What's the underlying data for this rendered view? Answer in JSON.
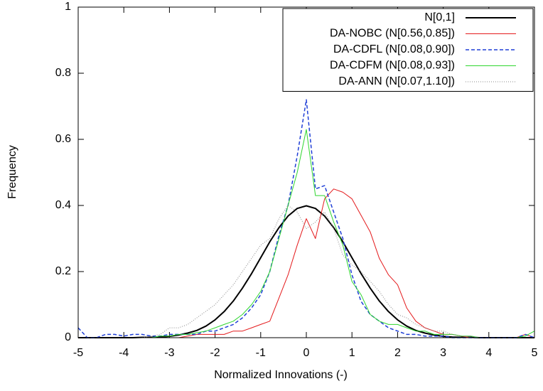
{
  "chart_data": {
    "type": "line",
    "xlabel": "Normalized Innovations (-)",
    "ylabel": "Frequency",
    "x": [
      -5,
      -4.8,
      -4.6,
      -4.4,
      -4.2,
      -4,
      -3.8,
      -3.6,
      -3.4,
      -3.2,
      -3,
      -2.8,
      -2.6,
      -2.4,
      -2.2,
      -2,
      -1.8,
      -1.6,
      -1.4,
      -1.2,
      -1,
      -0.8,
      -0.6,
      -0.4,
      -0.2,
      0,
      0.2,
      0.4,
      0.6,
      0.8,
      1,
      1.2,
      1.4,
      1.6,
      1.8,
      2,
      2.2,
      2.4,
      2.6,
      2.8,
      3,
      3.2,
      3.4,
      3.6,
      3.8,
      4,
      4.2,
      4.4,
      4.6,
      4.8,
      5
    ],
    "series": [
      {
        "name": "N[0,1]",
        "color": "#000000",
        "dash": "solid",
        "width": 2,
        "values": [
          0,
          0,
          0,
          0,
          0,
          0,
          0,
          0.001,
          0.001,
          0.002,
          0.004,
          0.008,
          0.014,
          0.022,
          0.035,
          0.054,
          0.079,
          0.111,
          0.15,
          0.194,
          0.242,
          0.29,
          0.333,
          0.368,
          0.391,
          0.399,
          0.391,
          0.368,
          0.333,
          0.29,
          0.242,
          0.194,
          0.15,
          0.111,
          0.079,
          0.054,
          0.035,
          0.022,
          0.014,
          0.008,
          0.004,
          0.002,
          0.001,
          0.001,
          0,
          0,
          0,
          0,
          0,
          0,
          0
        ]
      },
      {
        "name": "DA-NOBC (N[0.56,0.85])",
        "color": "#e41a1c",
        "dash": "solid",
        "width": 1,
        "values": [
          0,
          0,
          0,
          0,
          0,
          0,
          0,
          0,
          0,
          0,
          0,
          0,
          0.005,
          0.01,
          0.01,
          0.01,
          0.01,
          0.02,
          0.02,
          0.03,
          0.04,
          0.05,
          0.12,
          0.19,
          0.28,
          0.36,
          0.3,
          0.42,
          0.45,
          0.44,
          0.42,
          0.37,
          0.32,
          0.24,
          0.19,
          0.16,
          0.09,
          0.05,
          0.03,
          0.02,
          0.01,
          0.01,
          0.005,
          0,
          0,
          0,
          0,
          0,
          0,
          0.01,
          0
        ]
      },
      {
        "name": "DA-CDFL (N[0.08,0.90])",
        "color": "#1f3fd6",
        "dash": "dashed",
        "width": 1.5,
        "values": [
          0.03,
          0,
          0,
          0.01,
          0.01,
          0.005,
          0.01,
          0.01,
          0.005,
          0.005,
          0.01,
          0.01,
          0.01,
          0.01,
          0.02,
          0.02,
          0.03,
          0.04,
          0.06,
          0.09,
          0.13,
          0.2,
          0.31,
          0.4,
          0.55,
          0.72,
          0.45,
          0.46,
          0.38,
          0.3,
          0.19,
          0.11,
          0.07,
          0.05,
          0.03,
          0.02,
          0.01,
          0.01,
          0.005,
          0.005,
          0.005,
          0,
          0,
          0,
          0,
          0,
          0,
          0,
          0,
          0.01,
          0
        ]
      },
      {
        "name": "DA-CDFM (N[0.08,0.93])",
        "color": "#2fd62f",
        "dash": "solid",
        "width": 1,
        "values": [
          0,
          0,
          0,
          0,
          0,
          0,
          0,
          0,
          0,
          0.005,
          0.005,
          0.01,
          0.01,
          0.015,
          0.02,
          0.03,
          0.04,
          0.05,
          0.07,
          0.1,
          0.14,
          0.2,
          0.3,
          0.4,
          0.5,
          0.63,
          0.43,
          0.43,
          0.35,
          0.28,
          0.17,
          0.13,
          0.07,
          0.05,
          0.04,
          0.04,
          0.03,
          0.02,
          0.02,
          0.01,
          0.01,
          0.01,
          0.005,
          0.005,
          0,
          0,
          0,
          0,
          0,
          0.005,
          0.02
        ]
      },
      {
        "name": "DA-ANN (N[0.07,1.10])",
        "color": "#888888",
        "dash": "dotted",
        "width": 1,
        "values": [
          0,
          0,
          0,
          0,
          0,
          0,
          0,
          0,
          0.005,
          0.01,
          0.03,
          0.03,
          0.04,
          0.06,
          0.08,
          0.1,
          0.13,
          0.16,
          0.2,
          0.24,
          0.28,
          0.3,
          0.36,
          0.4,
          0.38,
          0.33,
          0.35,
          0.38,
          0.33,
          0.25,
          0.22,
          0.2,
          0.17,
          0.14,
          0.1,
          0.07,
          0.06,
          0.04,
          0.03,
          0.02,
          0.02,
          0.01,
          0.005,
          0.005,
          0,
          0,
          0,
          0,
          0,
          0,
          0
        ]
      }
    ],
    "xlim": [
      -5,
      5
    ],
    "ylim": [
      0,
      1
    ],
    "xticks": [
      -5,
      -4,
      -3,
      -2,
      -1,
      0,
      1,
      2,
      3,
      4,
      5
    ],
    "yticks": [
      0,
      0.2,
      0.4,
      0.6,
      0.8,
      1
    ],
    "legend": "upper-right",
    "grid": false
  }
}
